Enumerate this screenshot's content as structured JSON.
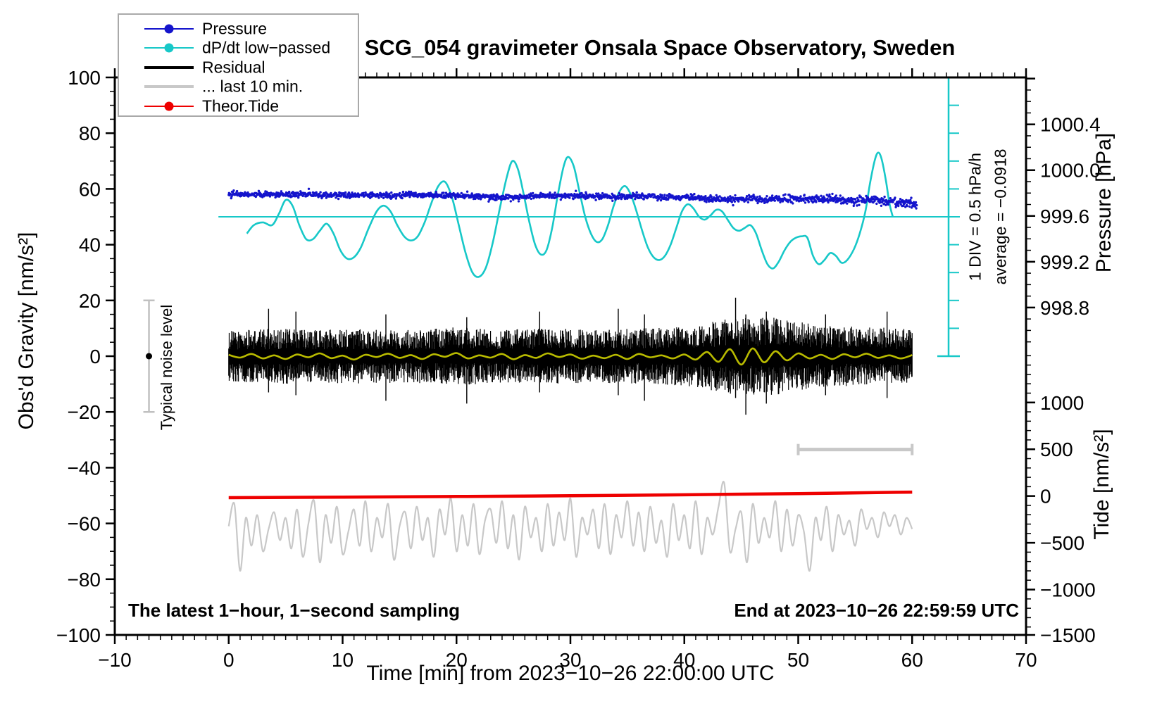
{
  "title": "SCG_054 gravimeter Onsala Space Observatory, Sweden",
  "annotations": {
    "sampling_note": "The latest 1−hour, 1−second sampling",
    "end_note": "End at 2023−10−26 22:59:59 UTC",
    "noise_bar_label": "Typical noise level",
    "div_scale_label": "1 DIV = 0.5 hPa/h",
    "average_label": "average = −0.0918"
  },
  "legend": {
    "items": [
      {
        "label": "Pressure",
        "color": "#1414cc",
        "marker": "circle",
        "line_width": 2
      },
      {
        "label": "dP/dt low−passed",
        "color": "#17c8c8",
        "marker": "circle",
        "line_width": 2
      },
      {
        "label": "Residual",
        "color": "#000000",
        "marker": "none",
        "line_width": 4
      },
      {
        "label": "... last 10 min.",
        "color": "#c8c8c8",
        "marker": "none",
        "line_width": 4
      },
      {
        "label": "Theor.Tide",
        "color": "#ee0000",
        "marker": "circle",
        "line_width": 2
      }
    ]
  },
  "chart_data": {
    "type": "line",
    "title": "SCG_054 gravimeter Onsala Space Observatory, Sweden",
    "x_axis": {
      "label": "Time [min] from 2023−10−26 22:00:00 UTC",
      "range": [
        -10,
        70
      ],
      "major_tick": 10,
      "minor_tick": 1,
      "tick_labels": [
        "−10",
        "0",
        "10",
        "20",
        "30",
        "40",
        "50",
        "60",
        "70"
      ],
      "tick_values": [
        -10,
        0,
        10,
        20,
        30,
        40,
        50,
        60,
        70
      ]
    },
    "gravity_axis": {
      "label": "Obs'd Gravity [nm/s²]",
      "range": [
        -100,
        100
      ],
      "major_tick": 20,
      "minor_tick": 5,
      "tick_labels": [
        "−100",
        "−80",
        "−60",
        "−40",
        "−20",
        "0",
        "20",
        "40",
        "60",
        "80",
        "100"
      ],
      "tick_values": [
        -100,
        -80,
        -60,
        -40,
        -20,
        0,
        20,
        40,
        60,
        80,
        100
      ]
    },
    "pressure_axis": {
      "label": "Pressure [hPa]",
      "range": [
        995.94,
        1000.81
      ],
      "major_tick": 0.4,
      "minor_tick": 0.1,
      "tick_labels": [
        "1000.4",
        "1000.0",
        "999.6",
        "999.2",
        "998.8"
      ],
      "tick_values": [
        1000.4,
        1000.0,
        999.6,
        999.2,
        998.8
      ],
      "minor_span": [
        998.5,
        1000.8
      ]
    },
    "tide_axis": {
      "label": "Tide [nm/s²]",
      "range": [
        -1485,
        4475
      ],
      "major_tick": 500,
      "minor_tick": 100,
      "tick_labels": [
        "1000",
        "500",
        "0",
        "−500",
        "−1000",
        "−1500"
      ],
      "tick_values": [
        1000,
        500,
        0,
        -500,
        -1000,
        -1500
      ],
      "minor_span": [
        -1500,
        1500
      ]
    },
    "reference_line": {
      "axis": "gravity",
      "value": 50,
      "t_start": -0.9,
      "meaning": "dP/dt = 0 hPa/h"
    },
    "dpdt_scale_bar": {
      "divisions": 10,
      "div_value": "0.5 hPa/h",
      "gravity_units_per_div": 10
    },
    "last10_window_bar": {
      "t_start": 50,
      "t_end": 60,
      "gravity_level": -33.5
    },
    "noise_error_bar": {
      "t": -7,
      "center": 0,
      "half_height": 20
    },
    "series": [
      {
        "name": "Pressure",
        "axis": "pressure",
        "color": "#1414cc",
        "style": "dots",
        "t": [
          0,
          1,
          2,
          3,
          4,
          5,
          6,
          7,
          8,
          9,
          10,
          11,
          12,
          13,
          14,
          15,
          16,
          17,
          18,
          19,
          20,
          21,
          22,
          23,
          24,
          25,
          26,
          27,
          28,
          29,
          30,
          31,
          32,
          33,
          34,
          35,
          36,
          37,
          38,
          39,
          40,
          41,
          42,
          43,
          44,
          45,
          46,
          47,
          48,
          49,
          50,
          51,
          52,
          53,
          54,
          55,
          56,
          57,
          58,
          59,
          60
        ],
        "hPa": [
          999.795,
          999.79,
          999.792,
          999.788,
          999.79,
          999.785,
          999.788,
          999.79,
          999.785,
          999.782,
          999.78,
          999.783,
          999.785,
          999.78,
          999.778,
          999.782,
          999.785,
          999.78,
          999.775,
          999.778,
          999.78,
          999.775,
          999.77,
          999.765,
          999.76,
          999.762,
          999.768,
          999.772,
          999.775,
          999.778,
          999.775,
          999.772,
          999.775,
          999.77,
          999.768,
          999.772,
          999.775,
          999.77,
          999.765,
          999.76,
          999.762,
          999.758,
          999.75,
          999.748,
          999.752,
          999.755,
          999.75,
          999.745,
          999.748,
          999.75,
          999.745,
          999.748,
          999.75,
          999.742,
          999.738,
          999.732,
          999.735,
          999.738,
          999.725,
          999.72,
          999.715
        ],
        "noise_sd_hPa": [
          0.012,
          0.012,
          0.013,
          0.013,
          0.014,
          0.016,
          0.02
        ]
      },
      {
        "name": "dP/dt low−passed",
        "axis": "gravity",
        "color": "#17c8c8",
        "style": "line",
        "average_hPa_per_h": -0.0918,
        "points": [
          [
            1.6,
            44
          ],
          [
            2.2,
            47
          ],
          [
            3.0,
            48
          ],
          [
            3.8,
            47
          ],
          [
            4.4,
            51
          ],
          [
            5.0,
            56
          ],
          [
            5.6,
            54
          ],
          [
            6.2,
            47
          ],
          [
            6.8,
            42
          ],
          [
            7.4,
            42
          ],
          [
            8.0,
            45
          ],
          [
            8.6,
            47.5
          ],
          [
            9.2,
            44
          ],
          [
            9.8,
            38
          ],
          [
            10.4,
            35
          ],
          [
            11.0,
            35.5
          ],
          [
            11.6,
            39
          ],
          [
            12.3,
            46
          ],
          [
            13.0,
            52
          ],
          [
            13.6,
            54
          ],
          [
            14.2,
            52
          ],
          [
            14.8,
            47
          ],
          [
            15.4,
            43
          ],
          [
            16.0,
            41.5
          ],
          [
            16.6,
            43
          ],
          [
            17.2,
            48
          ],
          [
            17.8,
            55
          ],
          [
            18.4,
            61
          ],
          [
            19.0,
            62.5
          ],
          [
            19.6,
            57
          ],
          [
            20.2,
            47
          ],
          [
            20.8,
            37
          ],
          [
            21.4,
            30
          ],
          [
            22.0,
            28.5
          ],
          [
            22.6,
            32
          ],
          [
            23.2,
            41
          ],
          [
            23.8,
            53
          ],
          [
            24.4,
            64
          ],
          [
            24.9,
            70
          ],
          [
            25.4,
            67
          ],
          [
            25.9,
            58
          ],
          [
            26.4,
            48
          ],
          [
            26.9,
            40
          ],
          [
            27.4,
            36.5
          ],
          [
            27.9,
            38
          ],
          [
            28.4,
            46
          ],
          [
            28.9,
            58
          ],
          [
            29.4,
            68
          ],
          [
            29.8,
            71.5
          ],
          [
            30.3,
            68
          ],
          [
            30.8,
            59
          ],
          [
            31.3,
            50
          ],
          [
            31.8,
            44
          ],
          [
            32.3,
            41
          ],
          [
            32.8,
            42
          ],
          [
            33.3,
            47
          ],
          [
            33.8,
            54
          ],
          [
            34.3,
            59
          ],
          [
            34.8,
            61
          ],
          [
            35.3,
            58
          ],
          [
            35.8,
            52
          ],
          [
            36.3,
            45
          ],
          [
            36.8,
            39
          ],
          [
            37.3,
            35.5
          ],
          [
            37.8,
            34.5
          ],
          [
            38.3,
            36
          ],
          [
            38.8,
            40
          ],
          [
            39.3,
            46
          ],
          [
            39.8,
            52
          ],
          [
            40.3,
            54.5
          ],
          [
            40.8,
            53
          ],
          [
            41.3,
            50
          ],
          [
            41.8,
            49
          ],
          [
            42.3,
            50.5
          ],
          [
            42.8,
            52.5
          ],
          [
            43.3,
            52
          ],
          [
            43.8,
            49
          ],
          [
            44.3,
            46
          ],
          [
            44.8,
            45
          ],
          [
            45.3,
            46
          ],
          [
            45.8,
            47
          ],
          [
            46.3,
            44
          ],
          [
            46.8,
            38
          ],
          [
            47.3,
            33
          ],
          [
            47.8,
            31.5
          ],
          [
            48.3,
            34
          ],
          [
            48.8,
            38
          ],
          [
            49.3,
            41
          ],
          [
            49.8,
            42.5
          ],
          [
            50.3,
            43
          ],
          [
            50.8,
            42.5
          ],
          [
            51.3,
            36
          ],
          [
            51.8,
            33
          ],
          [
            52.3,
            34.5
          ],
          [
            52.8,
            37
          ],
          [
            53.3,
            36
          ],
          [
            53.8,
            33.5
          ],
          [
            54.3,
            34.5
          ],
          [
            54.9,
            38.5
          ],
          [
            55.4,
            44
          ],
          [
            55.9,
            52
          ],
          [
            56.3,
            62
          ],
          [
            56.7,
            70
          ],
          [
            57.0,
            73
          ],
          [
            57.3,
            71
          ],
          [
            57.7,
            63
          ],
          [
            58.0,
            55
          ],
          [
            58.3,
            50
          ]
        ]
      },
      {
        "name": "Residual",
        "axis": "gravity",
        "color": "#000000",
        "style": "noise-band",
        "center": 0,
        "envelope_t_step": 4,
        "envelope_half_amplitude": [
          9,
          10,
          9.5,
          10,
          9.5,
          10.5,
          9.5,
          10,
          9.5,
          10,
          10.5,
          13.5,
          14,
          11,
          10.5,
          10
        ],
        "spikes": [
          [
            3.5,
            17,
            -13
          ],
          [
            5.9,
            16,
            -14
          ],
          [
            13.8,
            15,
            -16
          ],
          [
            20.9,
            14,
            -17
          ],
          [
            27.3,
            16,
            -13
          ],
          [
            34.2,
            17,
            -14
          ],
          [
            36.5,
            15,
            -16
          ],
          [
            44.5,
            21,
            -15
          ],
          [
            45.4,
            15,
            -21
          ],
          [
            47.2,
            16,
            -17
          ],
          [
            52.4,
            15,
            -14
          ],
          [
            57.8,
            16,
            -15
          ]
        ]
      },
      {
        "name": "Residual smoothed",
        "axis": "gravity",
        "color": "#b8ba00",
        "style": "line",
        "t_step": 1,
        "values": [
          0.5,
          -0.5,
          0.8,
          -0.8,
          0.3,
          -1,
          0.6,
          -0.4,
          1,
          -0.7,
          0.2,
          -1.2,
          0.5,
          -0.3,
          0.9,
          -0.6,
          0.4,
          -1,
          0.7,
          -0.2,
          1.1,
          -0.8,
          0.3,
          -0.5,
          0.8,
          -1.1,
          0.4,
          -0.6,
          1,
          -0.3,
          0.6,
          -0.9,
          0.2,
          -0.7,
          0.5,
          -1,
          0.8,
          -0.4,
          0.3,
          -0.8,
          0.6,
          -1.2,
          1.5,
          -2,
          2.5,
          -3,
          2.8,
          -2.2,
          1.8,
          -1.5,
          1,
          -0.8,
          0.5,
          -1,
          0.7,
          -0.4,
          0.9,
          -0.6,
          0.3,
          -0.8,
          0.4
        ]
      },
      {
        "name": "... last 10 min.",
        "axis": "gravity",
        "color": "#c8c8c8",
        "style": "line",
        "t_step": 0.5,
        "values": [
          -61,
          -53,
          -77,
          -58,
          -68,
          -57,
          -70,
          -62,
          -56,
          -66,
          -58,
          -69,
          -55,
          -72,
          -60,
          -52,
          -74,
          -57,
          -67,
          -54,
          -71,
          -63,
          -55,
          -68,
          -52,
          -70,
          -58,
          -65,
          -53,
          -73,
          -61,
          -56,
          -69,
          -54,
          -66,
          -58,
          -72,
          -55,
          -64,
          -51,
          -70,
          -57,
          -68,
          -53,
          -71,
          -59,
          -55,
          -67,
          -52,
          -69,
          -57,
          -73,
          -54,
          -65,
          -58,
          -70,
          -53,
          -68,
          -56,
          -66,
          -51,
          -72,
          -58,
          -64,
          -55,
          -69,
          -53,
          -71,
          -57,
          -65,
          -52,
          -68,
          -56,
          -70,
          -54,
          -67,
          -59,
          -72,
          -53,
          -66,
          -57,
          -69,
          -52,
          -71,
          -58,
          -64,
          -54,
          -45.5,
          -70,
          -62,
          -56,
          -74,
          -53,
          -67,
          -58,
          -65,
          -52,
          -70,
          -55,
          -68,
          -57,
          -63,
          -77,
          -58,
          -66,
          -54,
          -70,
          -57,
          -64,
          -59,
          -68,
          -55,
          -62,
          -58,
          -65,
          -56,
          -61,
          -57,
          -64,
          -58,
          -62
        ]
      },
      {
        "name": "Theor.Tide",
        "axis": "tide",
        "color": "#ee0000",
        "style": "line",
        "points": [
          [
            0,
            -18
          ],
          [
            10,
            -12
          ],
          [
            20,
            -5
          ],
          [
            30,
            3
          ],
          [
            40,
            13
          ],
          [
            50,
            26
          ],
          [
            60,
            42
          ]
        ]
      }
    ]
  }
}
